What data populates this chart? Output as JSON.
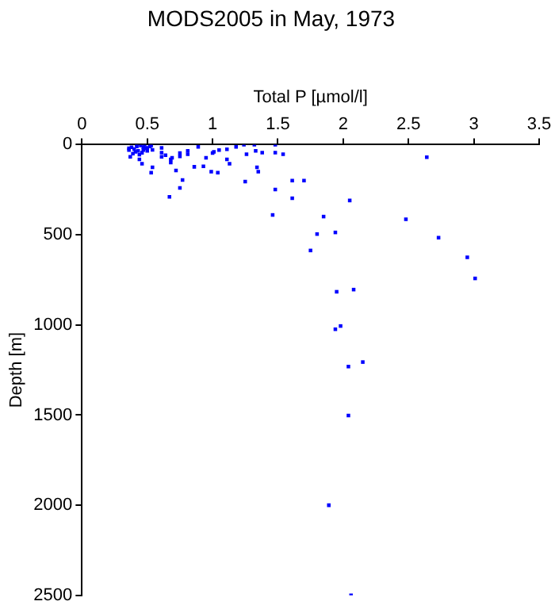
{
  "chart_data": {
    "type": "scatter",
    "title": "MODS2005 in May, 1973",
    "xlabel": "Total P [µmol/l]",
    "ylabel": "Depth [m]",
    "xlim": [
      0,
      3.5
    ],
    "xticks": [
      0,
      0.5,
      1,
      1.5,
      2,
      2.5,
      3,
      3.5
    ],
    "ylim": [
      2500,
      0
    ],
    "yticks": [
      0,
      500,
      1000,
      1500,
      2000,
      2500
    ],
    "grid": false,
    "marker": "square",
    "series": [
      {
        "color": "#0000ff",
        "x": [
          2.64,
          2.05,
          2.48,
          2.73,
          2.95,
          3.01,
          1.85,
          1.8,
          1.94,
          1.75,
          1.46,
          1.48,
          1.61,
          1.7,
          1.61,
          1.25,
          1.34,
          1.35,
          0.67,
          0.75,
          0.77,
          0.72,
          0.53,
          0.54,
          0.46,
          0.86,
          0.93,
          0.99,
          1.04,
          1.13,
          1.11,
          0.68,
          0.68,
          0.95,
          1.48,
          1.54,
          1.38,
          1.33,
          1.26,
          1.48,
          1.32,
          1.24,
          1.18,
          1.11,
          1.05,
          1.01,
          1,
          0.89,
          0.81,
          0.81,
          0.75,
          0.75,
          0.64,
          0.69,
          0.61,
          0.61,
          0.61,
          0.54,
          0.5,
          0.37,
          0.44,
          0.36,
          0.38,
          0.4,
          0.42,
          0.45,
          0.47,
          0.49,
          0.52,
          0.41,
          0.43,
          0.46,
          0.48,
          0.39,
          0.44,
          0.5,
          0.36,
          0.42,
          0.47,
          0.53,
          1.95,
          2.08,
          1.94,
          1.98,
          2.04,
          2.15,
          2.04,
          1.89,
          2.06
        ],
        "values": [
          70,
          310,
          414,
          516,
          625,
          742,
          399,
          496,
          487,
          587,
          390,
          249,
          199,
          199,
          297,
          205,
          126,
          150,
          290,
          240,
          196,
          143,
          155,
          126,
          106,
          123,
          120,
          150,
          155,
          106,
          82,
          82,
          99,
          73,
          44,
          53,
          44,
          35,
          53,
          0,
          0,
          0,
          12,
          26,
          30,
          40,
          47,
          12,
          35,
          53,
          47,
          65,
          59,
          73,
          18,
          44,
          68,
          29,
          18,
          68,
          82,
          20,
          15,
          25,
          10,
          5,
          30,
          20,
          10,
          40,
          35,
          45,
          0,
          50,
          55,
          35,
          30,
          0,
          15,
          5,
          816,
          804,
          1024,
          1006,
          1231,
          1206,
          1502,
          2000,
          2500
        ]
      }
    ]
  }
}
